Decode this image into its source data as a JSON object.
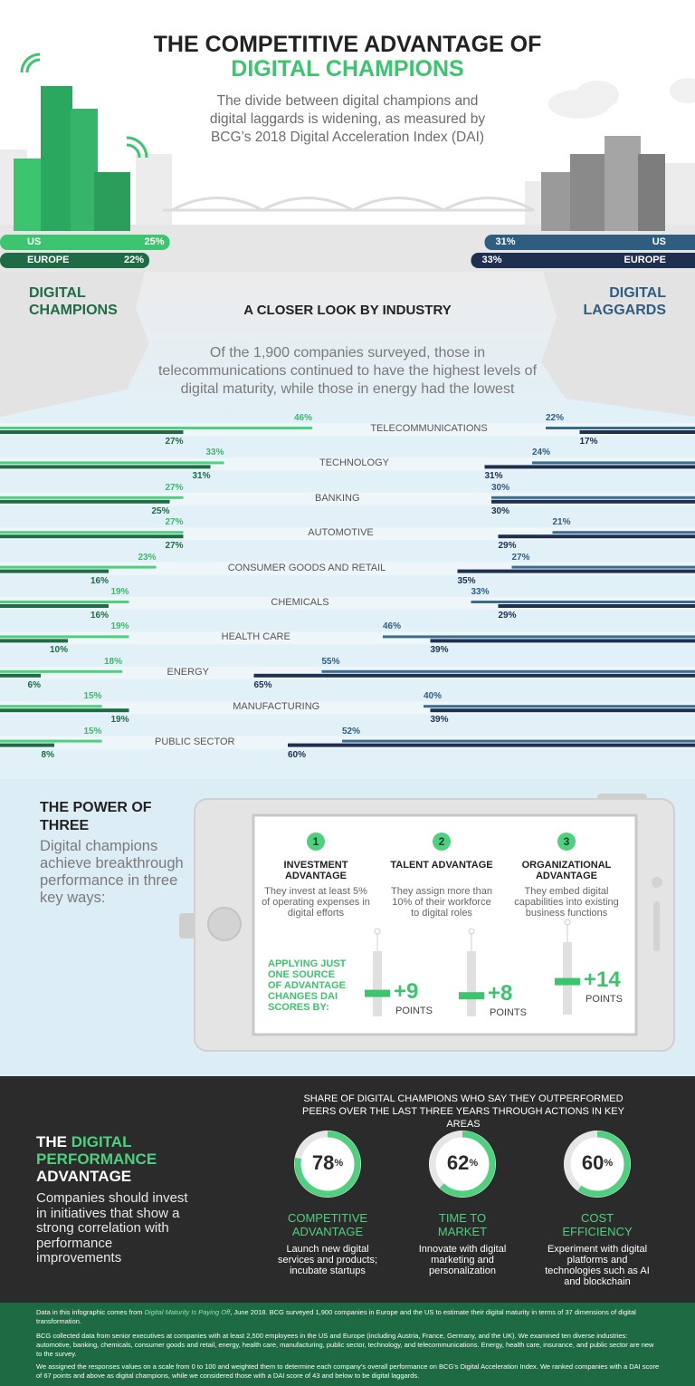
{
  "header": {
    "title_line1": "THE COMPETITIVE ADVANTAGE OF",
    "title_line2": "DIGITAL CHAMPIONS",
    "subtitle": "The divide between digital champions and digital laggards is widening, as measured by BCG’s 2018 Digital Acceleration Index (DAI)"
  },
  "regions": {
    "champions_label": "DIGITAL CHAMPIONS",
    "laggards_label": "DIGITAL LAGGARDS",
    "rows": [
      {
        "name": "US",
        "champions": 25,
        "champions_label": "25%",
        "laggards": 31,
        "laggards_label": "31%"
      },
      {
        "name": "EUROPE",
        "champions": 22,
        "champions_label": "22%",
        "laggards": 33,
        "laggards_label": "33%"
      }
    ]
  },
  "industries": {
    "title": "A CLOSER LOOK BY INDUSTRY",
    "intro": "Of the 1,900 companies surveyed, those in telecommunications continued to have the highest levels of digital maturity, while those in energy had the lowest",
    "rows": [
      {
        "name": "TELECOMMUNICATIONS",
        "champions": [
          46,
          27
        ],
        "champions_labels": [
          "46%",
          "27%"
        ],
        "laggards": [
          22,
          17
        ],
        "laggards_labels": [
          "22%",
          "17%"
        ]
      },
      {
        "name": "TECHNOLOGY",
        "champions": [
          33,
          31
        ],
        "champions_labels": [
          "33%",
          "31%"
        ],
        "laggards": [
          24,
          31
        ],
        "laggards_labels": [
          "24%",
          "31%"
        ]
      },
      {
        "name": "BANKING",
        "champions": [
          27,
          25
        ],
        "champions_labels": [
          "27%",
          "25%"
        ],
        "laggards": [
          30,
          30
        ],
        "laggards_labels": [
          "30%",
          "30%"
        ]
      },
      {
        "name": "AUTOMOTIVE",
        "champions": [
          27,
          27
        ],
        "champions_labels": [
          "27%",
          "27%"
        ],
        "laggards": [
          21,
          29
        ],
        "laggards_labels": [
          "21%",
          "29%"
        ]
      },
      {
        "name": "CONSUMER GOODS AND RETAIL",
        "champions": [
          23,
          16
        ],
        "champions_labels": [
          "23%",
          "16%"
        ],
        "laggards": [
          27,
          35
        ],
        "laggards_labels": [
          "27%",
          "35%"
        ]
      },
      {
        "name": "CHEMICALS",
        "champions": [
          19,
          16
        ],
        "champions_labels": [
          "19%",
          "16%"
        ],
        "laggards": [
          33,
          29
        ],
        "laggards_labels": [
          "33%",
          "29%"
        ]
      },
      {
        "name": "HEALTH CARE",
        "champions": [
          19,
          10
        ],
        "champions_labels": [
          "19%",
          "10%"
        ],
        "laggards": [
          46,
          39
        ],
        "laggards_labels": [
          "46%",
          "39%"
        ]
      },
      {
        "name": "ENERGY",
        "champions": [
          18,
          6
        ],
        "champions_labels": [
          "18%",
          "6%"
        ],
        "laggards": [
          55,
          65
        ],
        "laggards_labels": [
          "55%",
          "65%"
        ]
      },
      {
        "name": "MANUFACTURING",
        "champions": [
          15,
          19
        ],
        "champions_labels": [
          "15%",
          "19%"
        ],
        "laggards": [
          40,
          39
        ],
        "laggards_labels": [
          "40%",
          "39%"
        ]
      },
      {
        "name": "PUBLIC SECTOR",
        "champions": [
          15,
          8
        ],
        "champions_labels": [
          "15%",
          "8%"
        ],
        "laggards": [
          52,
          60
        ],
        "laggards_labels": [
          "52%",
          "60%"
        ]
      }
    ]
  },
  "power_of_three": {
    "title": "THE POWER OF THREE",
    "text": "Digital champions achieve breakthrough performance in three key ways:",
    "applying_text": "APPLYING JUST ONE SOURCE OF ADVANTAGE CHANGES DAI SCORES BY:",
    "items": [
      {
        "number": 1,
        "title": "INVESTMENT ADVANTAGE",
        "text": "They invest at least 5% of operating expenses in digital efforts",
        "gain": 9,
        "gain_label": "+9",
        "unit": "POINTS"
      },
      {
        "number": 2,
        "title": "TALENT ADVANTAGE",
        "text": "They assign more than 10% of their workforce to digital roles",
        "gain": 8,
        "gain_label": "+8",
        "unit": "POINTS"
      },
      {
        "number": 3,
        "title": "ORGANIZATIONAL ADVANTAGE",
        "text": "They embed digital capabilities into existing business functions",
        "gain": 14,
        "gain_label": "+14",
        "unit": "POINTS"
      }
    ]
  },
  "performance": {
    "title_prefix": "THE",
    "title_highlight": "DIGITAL PERFORMANCE",
    "title_suffix": "ADVANTAGE",
    "text": "Companies should invest in initiatives that show a strong correlation with performance improvements",
    "caption": "SHARE OF DIGITAL CHAMPIONS WHO SAY THEY OUTPERFORMED PEERS OVER THE LAST THREE YEARS THROUGH ACTIONS IN KEY AREAS",
    "items": [
      {
        "value": 78,
        "unit": "%",
        "title": "COMPETITIVE ADVANTAGE",
        "text": "Launch new digital services and products; incubate startups"
      },
      {
        "value": 62,
        "unit": "%",
        "title": "TIME TO MARKET",
        "text": "Innovate with digital marketing and personalization"
      },
      {
        "value": 60,
        "unit": "%",
        "title": "COST EFFICIENCY",
        "text": "Experiment with digital platforms and technologies such as AI and blockchain"
      }
    ]
  },
  "footnotes": {
    "p1_before": "Data in this infographic comes from ",
    "p1_link": "Digital Maturity Is Paying Off",
    "p1_after": ", June 2018. BCG surveyed 1,900 companies in Europe and the US to estimate their digital maturity in terms of 37 dimensions of digital transformation.",
    "p2": "BCG collected data from senior executives at companies with at least 2,500 employees in the US and Europe (including Austria, France, Germany, and the UK). We examined ten diverse industries: automotive, banking, chemicals, consumer goods and retail, energy, health care, manufacturing, public sector, technology, and telecommunications. Energy, health care, insurance, and public sector are new to the survey.",
    "p3": "We assigned the responses values on a scale from 0 to 100 and weighted them to determine each company’s overall performance on BCG’s Digital Acceleration Index. We ranked companies with a DAI score of 67 points and above as digital champions, while we considered those with a DAI score of 43 and below to be digital laggards."
  }
}
